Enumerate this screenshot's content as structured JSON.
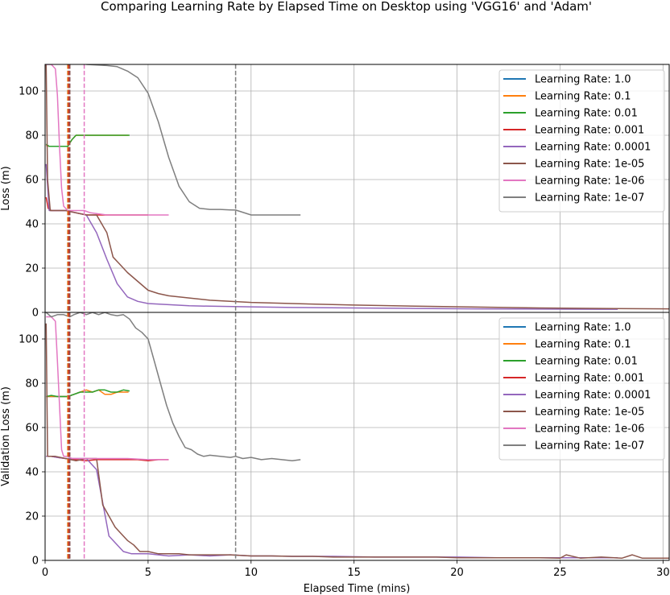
{
  "title": "Comparing Learning Rate by Elapsed Time on Desktop using 'VGG16' and 'Adam'",
  "chart_data": {
    "type": "line",
    "title": "Comparing Learning Rate by Elapsed Time on Desktop using 'VGG16' and 'Adam'",
    "xlabel": "Elapsed Time (mins)",
    "xlim": [
      0,
      30.3
    ],
    "x_ticks": [
      0,
      5,
      10,
      15,
      20,
      25,
      30
    ],
    "grid": true,
    "legend_position": "top-right",
    "colors": {
      "Learning Rate: 1.0": "#1f77b4",
      "Learning Rate: 0.1": "#ff7f0e",
      "Learning Rate: 0.01": "#2ca02c",
      "Learning Rate: 0.001": "#d62728",
      "Learning Rate: 0.0001": "#9467bd",
      "Learning Rate: 1e-05": "#8c564b",
      "Learning Rate: 1e-06": "#e377c2",
      "Learning Rate: 1e-07": "#7f7f7f"
    },
    "vlines": [
      {
        "x": 1.1,
        "color": "#1f77b4"
      },
      {
        "x": 1.1,
        "color": "#ff7f0e"
      },
      {
        "x": 1.15,
        "color": "#2ca02c"
      },
      {
        "x": 1.15,
        "color": "#d62728"
      },
      {
        "x": 1.2,
        "color": "#9467bd"
      },
      {
        "x": 1.2,
        "color": "#8c564b"
      },
      {
        "x": 1.9,
        "color": "#e377c2"
      },
      {
        "x": 9.25,
        "color": "#7f7f7f"
      }
    ],
    "panels": [
      {
        "ylabel": "Loss (m)",
        "ylim": [
          0,
          112
        ],
        "y_ticks": [
          0,
          20,
          40,
          60,
          80,
          100
        ],
        "series": [
          {
            "name": "Learning Rate: 1.0",
            "x": [
              0.05,
              0.2,
              0.5,
              0.8,
              1.1
            ],
            "y": [
              75.5,
              75,
              75,
              75,
              75
            ]
          },
          {
            "name": "Learning Rate: 0.1",
            "x": [
              0.05,
              0.2,
              0.5,
              0.8,
              1.1,
              1.3,
              1.5,
              2.0,
              2.5,
              3.0,
              3.5,
              4.05
            ],
            "y": [
              75.5,
              75,
              75,
              75,
              75,
              78,
              80,
              80,
              80,
              80,
              80,
              80
            ]
          },
          {
            "name": "Learning Rate: 0.01",
            "x": [
              0.05,
              0.2,
              0.5,
              0.8,
              1.1,
              1.3,
              1.5,
              2.0,
              2.5,
              3.0,
              3.5,
              4.1
            ],
            "y": [
              76,
              75,
              75,
              75,
              75,
              78,
              80,
              80,
              80,
              80,
              80,
              80
            ]
          },
          {
            "name": "Learning Rate: 0.001",
            "x": [
              0.05,
              0.15,
              0.3,
              0.6,
              1.0,
              1.5,
              2.0,
              3.0,
              4.0,
              5.0
            ],
            "y": [
              52,
              47,
              46,
              46,
              46,
              45,
              44,
              44,
              44,
              44
            ]
          },
          {
            "name": "Learning Rate: 0.0001",
            "x": [
              0.05,
              0.2,
              0.5,
              1.0,
              1.5,
              2.0,
              2.5,
              3.0,
              3.5,
              4.0,
              4.5,
              5.0,
              6.0,
              7.0,
              8.0,
              10.0,
              12.0,
              15.0,
              18.0,
              21.0,
              24.0,
              27.0,
              27.8
            ],
            "y": [
              67,
              46,
              46,
              46,
              45,
              44,
              36,
              24,
              13,
              7,
              5,
              4,
              3.5,
              3,
              2.8,
              2.5,
              2.2,
              2,
              1.8,
              1.6,
              1.5,
              1.4,
              1.4
            ]
          },
          {
            "name": "Learning Rate: 1e-05",
            "x": [
              0.05,
              0.12,
              0.25,
              0.5,
              1.0,
              1.5,
              2.0,
              2.5,
              3.0,
              3.3,
              3.6,
              4.0,
              4.5,
              5.0,
              5.5,
              6.0,
              7.0,
              8.0,
              10.0,
              12.0,
              15.0,
              18.0,
              21.0,
              24.0,
              27.0,
              30.3
            ],
            "y": [
              112,
              60,
              46,
              46,
              46,
              45,
              44,
              44,
              36,
              25,
              22,
              18,
              14,
              10,
              8.5,
              7.5,
              6.5,
              5.5,
              4.5,
              4,
              3.3,
              2.8,
              2.4,
              2,
              1.8,
              1.6
            ]
          },
          {
            "name": "Learning Rate: 1e-06",
            "x": [
              0.05,
              0.3,
              0.5,
              0.6,
              0.7,
              0.8,
              0.9,
              1.1,
              1.3,
              1.6,
              1.9,
              2.2,
              3.0,
              4.0,
              5.0,
              6.0
            ],
            "y": [
              112,
              112,
              110,
              98,
              75,
              56,
              48,
              46,
              46,
              46,
              46,
              45,
              44,
              44,
              44,
              44
            ]
          },
          {
            "name": "Learning Rate: 1e-07",
            "x": [
              2.0,
              3.0,
              3.5,
              4.0,
              4.5,
              5.0,
              5.5,
              6.0,
              6.5,
              7.0,
              7.5,
              8.0,
              8.5,
              9.0,
              9.25,
              9.5,
              10.0,
              11.0,
              12.0,
              12.4
            ],
            "y": [
              112,
              111.5,
              111,
              109,
              106,
              99,
              86,
              70,
              57,
              50,
              47,
              46.5,
              46.5,
              46.3,
              46.2,
              45.5,
              44,
              44,
              44,
              44
            ]
          }
        ]
      },
      {
        "ylabel": "Validation Loss (m)",
        "ylim": [
          0,
          112
        ],
        "y_ticks": [
          0,
          20,
          40,
          60,
          80,
          100
        ],
        "series": [
          {
            "name": "Learning Rate: 1.0",
            "x": [
              0.05,
              0.3,
              0.6,
              0.9,
              1.1,
              1.4,
              1.7
            ],
            "y": [
              74,
              74,
              74,
              74,
              74,
              75,
              76
            ]
          },
          {
            "name": "Learning Rate: 0.1",
            "x": [
              0.05,
              0.3,
              0.6,
              0.9,
              1.1,
              1.4,
              1.7,
              2.0,
              2.3,
              2.6,
              2.9,
              3.2,
              3.5,
              3.8,
              4.05
            ],
            "y": [
              74,
              74,
              74,
              74,
              74,
              75,
              76,
              77,
              76,
              77,
              75,
              75,
              76,
              76,
              76
            ]
          },
          {
            "name": "Learning Rate: 0.01",
            "x": [
              0.05,
              0.3,
              0.6,
              0.9,
              1.1,
              1.4,
              1.7,
              2.0,
              2.3,
              2.6,
              2.9,
              3.2,
              3.5,
              3.8,
              4.1
            ],
            "y": [
              74,
              74.5,
              74,
              74,
              74,
              75,
              76,
              76,
              76,
              77,
              77,
              76,
              76,
              77,
              76.5
            ]
          },
          {
            "name": "Learning Rate: 0.001",
            "x": [
              0.05,
              0.3,
              0.6,
              1.0,
              1.5,
              2.0,
              2.5,
              3.0,
              3.5,
              4.0,
              4.5,
              5.0,
              5.5,
              6.0
            ],
            "y": [
              47,
              47,
              46.5,
              46,
              45.5,
              45,
              45.5,
              45.5,
              45.5,
              45.5,
              45.5,
              45,
              45.5,
              45.5
            ]
          },
          {
            "name": "Learning Rate: 0.0001",
            "x": [
              0.05,
              0.3,
              0.6,
              1.0,
              1.5,
              2.0,
              2.5,
              2.8,
              3.1,
              3.5,
              3.8,
              4.2,
              4.6,
              5.0,
              5.5,
              6.0,
              7.0,
              8.0,
              9.0,
              10.0,
              11.0,
              12.0,
              14.0,
              16.0,
              18.0,
              20.0,
              22.0,
              24.0,
              26.0,
              27.8
            ],
            "y": [
              47,
              47,
              46.5,
              46,
              46,
              46,
              41,
              26,
              11,
              7,
              4,
              3,
              3,
              3,
              2.5,
              2,
              2.5,
              2,
              2.5,
              2,
              2,
              1.8,
              1.8,
              1.5,
              1.5,
              1.5,
              1.2,
              1.2,
              1.2,
              1.2
            ]
          },
          {
            "name": "Learning Rate: 1e-05",
            "x": [
              0.05,
              0.12,
              0.25,
              0.5,
              1.0,
              1.5,
              2.0,
              2.5,
              2.8,
              3.1,
              3.4,
              3.7,
              4.0,
              4.3,
              4.6,
              5.0,
              5.5,
              6.0,
              6.5,
              7.0,
              8.0,
              9.0,
              10.0,
              11.0,
              12.0,
              13.0,
              14.0,
              15.0,
              16.0,
              17.0,
              18.0,
              19.0,
              20.0,
              21.0,
              22.0,
              23.0,
              24.0,
              25.0,
              25.3,
              26.0,
              27.0,
              28.0,
              28.5,
              29.0,
              30.0,
              30.3
            ],
            "y": [
              107,
              47,
              47,
              47,
              46,
              45,
              46,
              46,
              25,
              20,
              15,
              12,
              9,
              7,
              4,
              4,
              3,
              3,
              3,
              2.5,
              2.5,
              2.5,
              2,
              2,
              1.8,
              1.8,
              1.5,
              1.5,
              1.5,
              1.5,
              1.5,
              1.5,
              1.2,
              1.2,
              1.2,
              1.2,
              1.2,
              1.0,
              2.5,
              1.0,
              1.5,
              1.0,
              2.5,
              1.0,
              1.0,
              1.0
            ]
          },
          {
            "name": "Learning Rate: 1e-06",
            "x": [
              0.05,
              0.3,
              0.5,
              0.6,
              0.7,
              0.8,
              0.9,
              1.1,
              1.3,
              1.6,
              1.9,
              2.2,
              3.0,
              4.0,
              5.0,
              6.0
            ],
            "y": [
              110,
              110,
              108,
              90,
              70,
              50,
              47,
              47,
              46,
              46,
              46,
              46,
              46,
              46,
              45.5,
              45.5
            ]
          },
          {
            "name": "Learning Rate: 1e-07",
            "x": [
              0.05,
              0.3,
              0.6,
              0.9,
              1.2,
              1.4,
              1.7,
              2.0,
              2.3,
              2.6,
              2.9,
              3.2,
              3.5,
              3.8,
              4.1,
              4.4,
              4.7,
              5.0,
              5.3,
              5.6,
              5.9,
              6.2,
              6.5,
              6.8,
              7.1,
              7.4,
              7.7,
              8.0,
              8.5,
              9.0,
              9.25,
              9.6,
              10.0,
              10.5,
              11.0,
              11.5,
              12.0,
              12.4
            ],
            "y": [
              112,
              110,
              111,
              111,
              110,
              111,
              112,
              111,
              112,
              111,
              112,
              111,
              110.5,
              111,
              109,
              105,
              103,
              100,
              90,
              80,
              70,
              62,
              56,
              51,
              50,
              48,
              47,
              47.5,
              47,
              46.5,
              47,
              46,
              46.5,
              45.5,
              46,
              45.5,
              45,
              45.5
            ]
          }
        ]
      }
    ]
  }
}
